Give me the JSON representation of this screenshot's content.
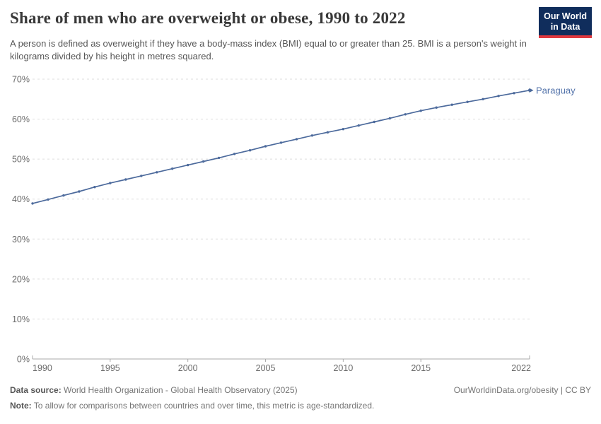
{
  "header": {
    "title": "Share of men who are overweight or obese, 1990 to 2022",
    "subtitle": "A person is defined as overweight if they have a body-mass index (BMI) equal to or greater than 25. BMI is a person's weight in kilograms divided by his height in metres squared.",
    "logo": {
      "line1": "Our World",
      "line2": "in Data"
    }
  },
  "chart_data": {
    "type": "line",
    "title": "Share of men who are overweight or obese, 1990 to 2022",
    "x": [
      1990,
      1991,
      1992,
      1993,
      1994,
      1995,
      1996,
      1997,
      1998,
      1999,
      2000,
      2001,
      2002,
      2003,
      2004,
      2005,
      2006,
      2007,
      2008,
      2009,
      2010,
      2011,
      2012,
      2013,
      2014,
      2015,
      2016,
      2017,
      2018,
      2019,
      2020,
      2021,
      2022
    ],
    "series": [
      {
        "name": "Paraguay",
        "color": "#4C6A9C",
        "values": [
          38.9,
          39.9,
          40.9,
          41.9,
          43.0,
          44.0,
          44.9,
          45.8,
          46.7,
          47.6,
          48.5,
          49.4,
          50.3,
          51.3,
          52.2,
          53.2,
          54.1,
          55.0,
          55.9,
          56.7,
          57.5,
          58.4,
          59.3,
          60.2,
          61.2,
          62.1,
          62.9,
          63.6,
          64.3,
          65.0,
          65.8,
          66.5,
          67.2
        ]
      }
    ],
    "xlim": [
      1990,
      2022
    ],
    "ylim": [
      0,
      70
    ],
    "x_ticks": [
      1990,
      1995,
      2000,
      2005,
      2010,
      2015,
      2022
    ],
    "y_ticks": [
      0,
      10,
      20,
      30,
      40,
      50,
      60,
      70
    ],
    "y_tick_suffix": "%",
    "grid": "horizontal-dashed",
    "legend_position": "end-of-line",
    "xlabel": "",
    "ylabel": ""
  },
  "palette": {
    "line": "#4C6A9C",
    "series_label": "#5474AB",
    "grid": "#dddddd",
    "axis": "#a9a9a9",
    "tick_text": "#6b6b6b",
    "logo_bg": "#102D5C",
    "logo_accent": "#E0383E"
  },
  "footer": {
    "datasource_label": "Data source:",
    "datasource_value": "World Health Organization - Global Health Observatory (2025)",
    "rights": "OurWorldinData.org/obesity | CC BY",
    "note_label": "Note:",
    "note_value": "To allow for comparisons between countries and over time, this metric is age-standardized."
  }
}
